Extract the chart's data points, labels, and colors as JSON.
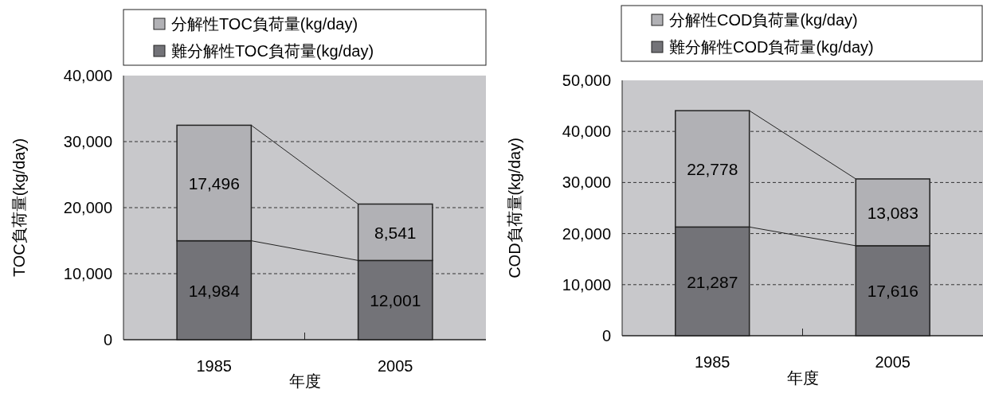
{
  "chart_data": [
    {
      "type": "bar",
      "stacked": true,
      "categories": [
        "1985",
        "2005"
      ],
      "xlabel": "年度",
      "ylabel": "TOC負荷量(kg/day)",
      "ylim": [
        0,
        40000
      ],
      "yticks": [
        {
          "value": 0,
          "label": "0"
        },
        {
          "value": 10000,
          "label": "10,000"
        },
        {
          "value": 20000,
          "label": "20,000"
        },
        {
          "value": 30000,
          "label": "30,000"
        },
        {
          "value": 40000,
          "label": "40,000"
        }
      ],
      "grid": "y",
      "legend": "top",
      "data_labels": true,
      "series": [
        {
          "name": "難分解性TOC負荷量(kg/day)",
          "color": "#737378",
          "values": [
            14984,
            12001
          ],
          "value_labels": [
            "14,984",
            "12,001"
          ]
        },
        {
          "name": "分解性TOC負荷量(kg/day)",
          "color": "#b1b1b5",
          "values": [
            17496,
            8541
          ],
          "value_labels": [
            "17,496",
            "8,541"
          ]
        }
      ]
    },
    {
      "type": "bar",
      "stacked": true,
      "categories": [
        "1985",
        "2005"
      ],
      "xlabel": "年度",
      "ylabel": "COD負荷量(kg/day)",
      "ylim": [
        0,
        50000
      ],
      "yticks": [
        {
          "value": 0,
          "label": "0"
        },
        {
          "value": 10000,
          "label": "10,000"
        },
        {
          "value": 20000,
          "label": "20,000"
        },
        {
          "value": 30000,
          "label": "30,000"
        },
        {
          "value": 40000,
          "label": "40,000"
        },
        {
          "value": 50000,
          "label": "50,000"
        }
      ],
      "grid": "y",
      "legend": "top",
      "data_labels": true,
      "series": [
        {
          "name": "難分解性COD負荷量(kg/day)",
          "color": "#737378",
          "values": [
            21287,
            17616
          ],
          "value_labels": [
            "21,287",
            "17,616"
          ]
        },
        {
          "name": "分解性COD負荷量(kg/day)",
          "color": "#b1b1b5",
          "values": [
            22778,
            13083
          ],
          "value_labels": [
            "22,778",
            "13,083"
          ]
        }
      ]
    }
  ]
}
